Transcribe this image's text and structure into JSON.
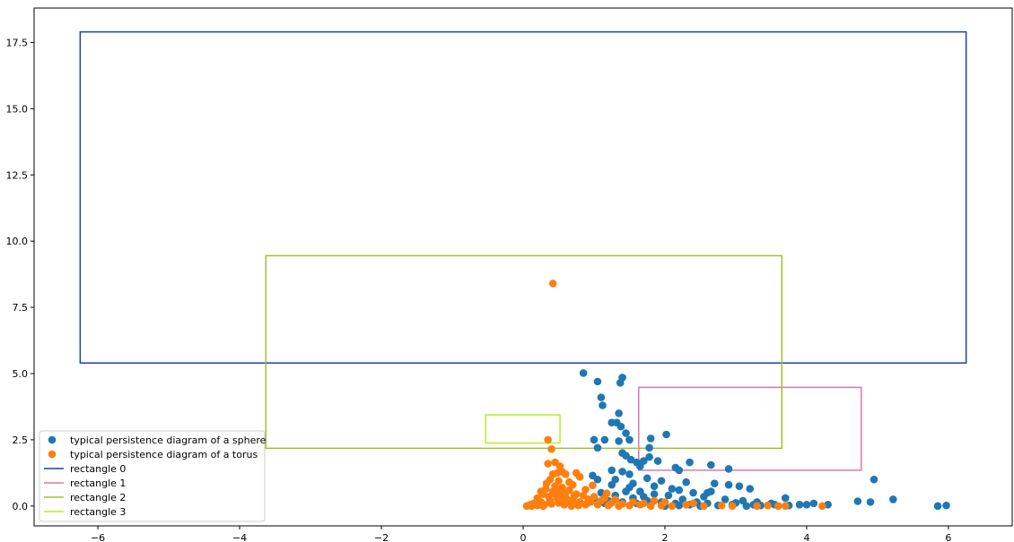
{
  "chart_data": {
    "type": "scatter",
    "title": "",
    "xlabel": "",
    "ylabel": "",
    "xlim": [
      -6.9,
      6.9
    ],
    "ylim": [
      -0.75,
      18.8
    ],
    "xticks": [
      -6,
      -4,
      -2,
      0,
      2,
      4,
      6
    ],
    "xtick_labels": [
      "−6",
      "−4",
      "−2",
      "0",
      "2",
      "4",
      "6"
    ],
    "yticks": [
      0.0,
      2.5,
      5.0,
      7.5,
      10.0,
      12.5,
      15.0,
      17.5
    ],
    "ytick_labels": [
      "0.0",
      "2.5",
      "5.0",
      "7.5",
      "10.0",
      "12.5",
      "15.0",
      "17.5"
    ],
    "grid": false,
    "legend_position": "lower-left",
    "series": [
      {
        "name": "typical persistence diagram of a sphere",
        "color": "#1f77b4",
        "points": [
          [
            0.85,
            5.02
          ],
          [
            1.4,
            4.85
          ],
          [
            1.05,
            4.7
          ],
          [
            1.37,
            4.65
          ],
          [
            1.1,
            4.1
          ],
          [
            1.12,
            3.8
          ],
          [
            1.35,
            3.5
          ],
          [
            1.25,
            3.15
          ],
          [
            1.32,
            3.15
          ],
          [
            1.38,
            3.0
          ],
          [
            1.45,
            2.75
          ],
          [
            1.5,
            2.5
          ],
          [
            1.0,
            2.5
          ],
          [
            1.15,
            2.5
          ],
          [
            1.35,
            2.45
          ],
          [
            2.02,
            2.7
          ],
          [
            1.8,
            2.55
          ],
          [
            1.78,
            2.2
          ],
          [
            1.05,
            2.2
          ],
          [
            1.4,
            2.0
          ],
          [
            1.45,
            1.9
          ],
          [
            1.78,
            1.85
          ],
          [
            1.9,
            1.7
          ],
          [
            1.6,
            1.65
          ],
          [
            1.52,
            1.75
          ],
          [
            1.7,
            1.7
          ],
          [
            1.65,
            1.5
          ],
          [
            2.35,
            1.65
          ],
          [
            2.65,
            1.55
          ],
          [
            2.9,
            1.4
          ],
          [
            2.15,
            1.45
          ],
          [
            2.2,
            1.35
          ],
          [
            1.4,
            1.3
          ],
          [
            1.5,
            1.2
          ],
          [
            1.25,
            1.35
          ],
          [
            0.98,
            1.15
          ],
          [
            1.05,
            1.0
          ],
          [
            1.3,
            1.0
          ],
          [
            1.75,
            1.05
          ],
          [
            1.95,
            0.95
          ],
          [
            2.3,
            0.9
          ],
          [
            2.7,
            0.85
          ],
          [
            2.9,
            0.8
          ],
          [
            3.05,
            0.75
          ],
          [
            3.2,
            0.65
          ],
          [
            2.2,
            0.6
          ],
          [
            2.4,
            0.5
          ],
          [
            2.6,
            0.5
          ],
          [
            2.65,
            0.55
          ],
          [
            1.25,
            0.8
          ],
          [
            1.5,
            0.7
          ],
          [
            1.65,
            0.55
          ],
          [
            1.85,
            0.45
          ],
          [
            2.05,
            0.4
          ],
          [
            2.55,
            0.35
          ],
          [
            2.85,
            0.25
          ],
          [
            3.1,
            0.2
          ],
          [
            3.3,
            0.15
          ],
          [
            3.5,
            0.1
          ],
          [
            3.7,
            0.3
          ],
          [
            3.9,
            0.05
          ],
          [
            4.3,
            0.05
          ],
          [
            4.0,
            0.05
          ],
          [
            4.72,
            0.18
          ],
          [
            4.9,
            0.15
          ],
          [
            4.95,
            1.0
          ],
          [
            5.22,
            0.25
          ],
          [
            5.85,
            0.0
          ],
          [
            5.97,
            0.02
          ],
          [
            3.55,
            0.05
          ],
          [
            3.75,
            0.02
          ],
          [
            4.1,
            0.1
          ],
          [
            1.1,
            0.5
          ],
          [
            1.3,
            0.4
          ],
          [
            1.55,
            0.3
          ],
          [
            1.75,
            0.2
          ],
          [
            1.95,
            0.15
          ],
          [
            2.15,
            0.1
          ],
          [
            2.35,
            0.05
          ],
          [
            2.5,
            0.0
          ],
          [
            2.75,
            0.02
          ],
          [
            2.95,
            0.05
          ],
          [
            3.15,
            0.0
          ],
          [
            3.35,
            0.02
          ],
          [
            1.2,
            0.2
          ],
          [
            1.4,
            0.15
          ],
          [
            1.6,
            0.1
          ],
          [
            1.8,
            0.05
          ],
          [
            2.0,
            0.0
          ],
          [
            2.2,
            0.02
          ],
          [
            1.0,
            0.3
          ],
          [
            1.15,
            0.1
          ],
          [
            1.45,
            0.55
          ],
          [
            1.7,
            0.35
          ],
          [
            2.25,
            0.25
          ],
          [
            2.45,
            0.15
          ],
          [
            2.6,
            0.1
          ],
          [
            3.0,
            0.12
          ],
          [
            3.25,
            0.05
          ],
          [
            1.55,
            0.85
          ],
          [
            1.85,
            0.75
          ],
          [
            2.1,
            0.65
          ]
        ]
      },
      {
        "name": "typical persistence diagram of a torus",
        "color": "#ff7f0e",
        "points": [
          [
            0.42,
            8.4
          ],
          [
            0.35,
            2.5
          ],
          [
            0.4,
            2.15
          ],
          [
            0.35,
            1.6
          ],
          [
            0.45,
            1.65
          ],
          [
            0.52,
            1.5
          ],
          [
            0.55,
            1.3
          ],
          [
            0.48,
            1.25
          ],
          [
            0.42,
            1.2
          ],
          [
            0.6,
            1.2
          ],
          [
            0.75,
            1.25
          ],
          [
            0.8,
            1.1
          ],
          [
            0.38,
            1.0
          ],
          [
            0.5,
            0.95
          ],
          [
            0.65,
            0.9
          ],
          [
            0.7,
            0.8
          ],
          [
            0.45,
            0.75
          ],
          [
            0.55,
            0.7
          ],
          [
            0.32,
            0.65
          ],
          [
            0.42,
            0.55
          ],
          [
            0.6,
            0.5
          ],
          [
            0.75,
            0.45
          ],
          [
            0.85,
            0.4
          ],
          [
            1.0,
            0.35
          ],
          [
            0.28,
            0.45
          ],
          [
            0.36,
            0.35
          ],
          [
            0.48,
            0.3
          ],
          [
            0.62,
            0.25
          ],
          [
            0.7,
            0.2
          ],
          [
            0.8,
            0.15
          ],
          [
            0.9,
            0.1
          ],
          [
            1.05,
            0.05
          ],
          [
            1.2,
            0.02
          ],
          [
            1.35,
            0.0
          ],
          [
            1.5,
            0.02
          ],
          [
            1.65,
            0.05
          ],
          [
            1.8,
            0.0
          ],
          [
            1.95,
            0.02
          ],
          [
            2.1,
            0.0
          ],
          [
            2.3,
            0.05
          ],
          [
            2.55,
            0.0
          ],
          [
            2.8,
            0.02
          ],
          [
            2.95,
            0.0
          ],
          [
            3.3,
            0.0
          ],
          [
            3.45,
            0.02
          ],
          [
            3.6,
            0.0
          ],
          [
            3.7,
            0.0
          ],
          [
            4.22,
            0.0
          ],
          [
            0.2,
            0.3
          ],
          [
            0.25,
            0.15
          ],
          [
            0.15,
            0.1
          ],
          [
            0.1,
            0.05
          ],
          [
            0.05,
            0.0
          ],
          [
            0.12,
            0.0
          ],
          [
            0.2,
            0.02
          ],
          [
            0.3,
            0.05
          ],
          [
            0.4,
            0.08
          ],
          [
            0.5,
            0.12
          ],
          [
            0.58,
            0.05
          ],
          [
            0.68,
            0.0
          ],
          [
            0.78,
            0.02
          ],
          [
            0.88,
            0.05
          ],
          [
            0.95,
            0.15
          ],
          [
            1.1,
            0.2
          ],
          [
            1.25,
            0.12
          ],
          [
            1.4,
            0.08
          ],
          [
            1.55,
            0.15
          ],
          [
            1.7,
            0.1
          ],
          [
            0.33,
            0.85
          ],
          [
            0.52,
            0.55
          ],
          [
            0.65,
            0.6
          ],
          [
            0.72,
            0.38
          ],
          [
            0.92,
            0.25
          ],
          [
            1.15,
            0.3
          ],
          [
            1.3,
            0.25
          ],
          [
            0.25,
            0.55
          ],
          [
            0.45,
            0.45
          ],
          [
            0.58,
            0.35
          ],
          [
            0.38,
            0.2
          ],
          [
            0.52,
            0.18
          ],
          [
            0.62,
            0.12
          ],
          [
            0.08,
            0.02
          ],
          [
            0.18,
            0.06
          ],
          [
            0.28,
            0.0
          ],
          [
            0.98,
            0.78
          ],
          [
            0.88,
            0.62
          ],
          [
            1.18,
            0.48
          ],
          [
            2.0,
            0.15
          ],
          [
            2.4,
            0.1
          ],
          [
            1.85,
            0.2
          ]
        ]
      }
    ],
    "rectangles": [
      {
        "name": "rectangle 0",
        "color": "#1f3fa8",
        "x0": -6.25,
        "x1": 6.25,
        "y0": 5.4,
        "y1": 17.9
      },
      {
        "name": "rectangle 1",
        "color": "#de77ae",
        "x0": 1.63,
        "x1": 4.77,
        "y0": 1.35,
        "y1": 4.48
      },
      {
        "name": "rectangle 2",
        "color": "#9fc130",
        "x0": -3.63,
        "x1": 3.65,
        "y0": 2.18,
        "y1": 9.45
      },
      {
        "name": "rectangle 3",
        "color": "#b7ee2a",
        "x0": -0.53,
        "x1": 0.52,
        "y0": 2.38,
        "y1": 3.44
      }
    ]
  }
}
